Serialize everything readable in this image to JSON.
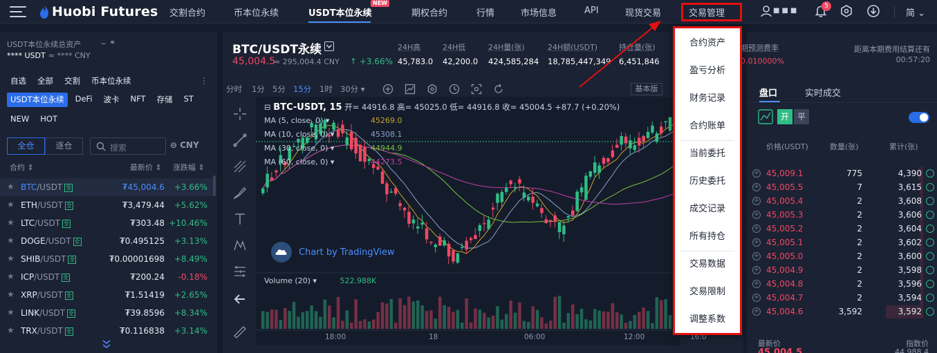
{
  "nav": {
    "logo": "Huobi Futures",
    "links": [
      "交割合约",
      "币本位永续",
      "USDT本位永续",
      "期权合约",
      "行情",
      "市场信息",
      "API",
      "现货交易",
      "交易管理"
    ],
    "active_index": 2,
    "new_badge": "NEW",
    "user_masked": "■■■",
    "bell_count": "5",
    "language": "简"
  },
  "left": {
    "title": "USDT本位永续总资产",
    "balance": "**** USDT",
    "balance_cny": "≈ **** CNY",
    "categories_row1": [
      "自选",
      "全部",
      "交割",
      "币本位永续"
    ],
    "categories_row2": [
      "USDT本位永续",
      "DeFi",
      "波卡",
      "NFT",
      "存储",
      "ST"
    ],
    "categories_row3": [
      "NEW",
      "HOT"
    ],
    "active_category": "USDT本位永续",
    "seg": [
      "全仓",
      "逐仓"
    ],
    "search_placeholder": "搜索",
    "currency_toggle": "CNY",
    "headers": {
      "contract": "合约 ⇕",
      "last": "最新价 ⇕",
      "change": "涨跌幅 ⇕"
    },
    "tag": "全",
    "rows": [
      {
        "base": "BTC",
        "quote": "/USDT",
        "price": "₮45,004.6",
        "change": "+3.66%",
        "dir": "up",
        "highlight": true
      },
      {
        "base": "ETH",
        "quote": "/USDT",
        "price": "₮3,479.44",
        "change": "+5.62%",
        "dir": "up"
      },
      {
        "base": "LTC",
        "quote": "/USDT",
        "price": "₮303.48",
        "change": "+10.46%",
        "dir": "up"
      },
      {
        "base": "DOGE",
        "quote": "/USDT",
        "price": "₮0.495125",
        "change": "+3.13%",
        "dir": "up"
      },
      {
        "base": "SHIB",
        "quote": "/USDT",
        "price": "₮0.00001698",
        "change": "+8.49%",
        "dir": "up"
      },
      {
        "base": "ICP",
        "quote": "/USDT",
        "price": "₮200.24",
        "change": "-0.18%",
        "dir": "down"
      },
      {
        "base": "XRP",
        "quote": "/USDT",
        "price": "₮1.51419",
        "change": "+2.65%",
        "dir": "up"
      },
      {
        "base": "LINK",
        "quote": "/USDT",
        "price": "₮39.8596",
        "change": "+8.34%",
        "dir": "up"
      },
      {
        "base": "TRX",
        "quote": "/USDT",
        "price": "₮0.116838",
        "change": "+3.14%",
        "dir": "up"
      }
    ]
  },
  "ticker": {
    "pair": "BTC/USDT永续",
    "last_price": "45,004.5",
    "last_cny": "≈ 295,004.4 CNY",
    "change": "↑ +3.66%",
    "stats": [
      {
        "label": "24H高",
        "value": "45,783.0"
      },
      {
        "label": "24H低",
        "value": "42,200.0"
      },
      {
        "label": "24H量(张)",
        "value": "424,585,284"
      },
      {
        "label": "24H额(USDT)",
        "value": "18,785,447,349"
      },
      {
        "label": "持仓量(张)",
        "value": "6,451,846"
      }
    ],
    "funding_label": "期预测费率",
    "funding_value": "0.010000%",
    "settle_label": "距离本期费用结算还有",
    "settle_time": "00:57:20"
  },
  "chart": {
    "timeframes": [
      "分时",
      "1分",
      "5分",
      "15分",
      "1时",
      "30分 ▾"
    ],
    "active_tf": "15分",
    "basic_btn": "基本版",
    "ohlc_title": "BTC-USDT, 15",
    "ohlc_rest": "开= 44916.8  高= 45025.0  低= 44916.8  收= 45004.5  +87.7 (+0.20%)",
    "ma": [
      {
        "label": "MA (5, close, 0) ▾",
        "value": "45269.0",
        "color": "#c9a227"
      },
      {
        "label": "MA (10, close, 0) ▾",
        "value": "45308.1",
        "color": "#8aa0c8"
      },
      {
        "label": "MA (30, close, 0) ▾",
        "value": "44944.9",
        "color": "#7bc043"
      },
      {
        "label": "MA (60, close, 0) ▾",
        "value": "44273.5",
        "color": "#c23fa6"
      }
    ],
    "watermark": "Chart by TradingView",
    "volume_label": "Volume (20) ▾",
    "volume_value": "522.988K",
    "time_labels": [
      "18:00",
      "18",
      "06:00",
      "12:00",
      "16:0"
    ]
  },
  "orderbook": {
    "tabs": [
      "盘口",
      "实时成交"
    ],
    "open_label": "开",
    "close_label": "平",
    "headers": [
      "价格(USDT)",
      "数量(张)",
      "累计(张)"
    ],
    "asks": [
      {
        "price": "45,009.1",
        "amount": "775",
        "total": "4,390"
      },
      {
        "price": "45,005.5",
        "amount": "7",
        "total": "3,615"
      },
      {
        "price": "45,005.4",
        "amount": "2",
        "total": "3,608"
      },
      {
        "price": "45,005.3",
        "amount": "2",
        "total": "3,606"
      },
      {
        "price": "45,005.2",
        "amount": "2",
        "total": "3,604"
      },
      {
        "price": "45,005.1",
        "amount": "2",
        "total": "3,602"
      },
      {
        "price": "45,005.0",
        "amount": "2",
        "total": "3,600"
      },
      {
        "price": "45,004.9",
        "amount": "2",
        "total": "3,598"
      },
      {
        "price": "45,004.8",
        "amount": "2",
        "total": "3,596"
      },
      {
        "price": "45,004.7",
        "amount": "2",
        "total": "3,594"
      },
      {
        "price": "45,004.6",
        "amount": "3,592",
        "total": "3,592"
      }
    ],
    "foot_last": "最新价",
    "foot_index": "指数价",
    "bottom_price": "45,004.5",
    "bottom_index": "44,988.4"
  },
  "dropdown": {
    "items": [
      "合约资产",
      "盈亏分析",
      "财务记录",
      "合约账单",
      "当前委托",
      "历史委托",
      "成交记录",
      "所有持仓",
      "交易数据",
      "交易限制",
      "调整系数"
    ]
  }
}
